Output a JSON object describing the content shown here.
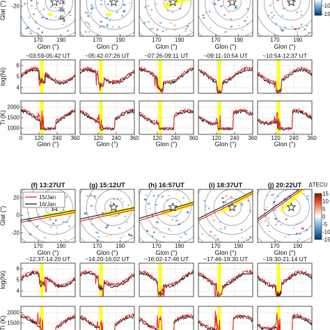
{
  "figure": {
    "ring_labels": [
      "1k",
      "2k",
      "3k",
      "4k"
    ],
    "colorbar_title": "ΔTECU",
    "colorbar_ticks": [
      "15",
      "10",
      "5",
      "0",
      "-5",
      "-10",
      "-15"
    ],
    "colors": {
      "jan15": "#e31a1c",
      "jan16": "#111111",
      "highlight": "#ffff00",
      "grid": "#b0b0b0"
    }
  },
  "chart_data": [
    {
      "type": "scatter",
      "group": "upper",
      "panels": [
        {
          "tag": "",
          "time": "",
          "window": "~03:59-05:42 UT"
        },
        {
          "tag": "",
          "time": "",
          "window": "~05:42-07:26 UT"
        },
        {
          "tag": "",
          "time": "",
          "window": "~07:26-09:11 UT"
        },
        {
          "tag": "",
          "time": "",
          "window": "~09:11-10:54 UT"
        },
        {
          "tag": "",
          "time": "",
          "window": "~10:54-12:37 UT"
        }
      ],
      "map": {
        "xlabel": "Glon (°)",
        "ylabel": "Glat (°)",
        "xticks": [
          170,
          190
        ],
        "yticks": [
          -20
        ]
      },
      "ni": {
        "ylabel": "log(Ni)",
        "yticks": [
          4,
          5,
          6
        ],
        "ylim": [
          3.5,
          6.5
        ]
      },
      "ti": {
        "ylabel": "Ti (K)",
        "yticks": [
          1000,
          1500,
          2000
        ],
        "ylim": [
          700,
          2300
        ],
        "xticks": [
          0,
          120,
          240,
          360
        ],
        "xlabel": "Glon (°)"
      },
      "highlight_glon": [
        128,
        150
      ]
    },
    {
      "type": "scatter",
      "group": "lower",
      "legend": [
        "15/Jan",
        "16/Jan"
      ],
      "legend_position": "top-left",
      "panels": [
        {
          "tag": "(f)",
          "time": "13:27UT",
          "window": "~12:37-14:20 UT"
        },
        {
          "tag": "(g)",
          "time": "15:12UT",
          "window": "~14:20-16:02 UT"
        },
        {
          "tag": "(h)",
          "time": "16:57UT",
          "window": "~16:02-17:46 UT"
        },
        {
          "tag": "(i)",
          "time": "18:37UT",
          "window": "~17:46-19:30 UT"
        },
        {
          "tag": "(j)",
          "time": "20:22UT",
          "window": "~19:30-21:14 UT"
        }
      ],
      "map": {
        "xlabel": "Glon (°)",
        "ylabel": "Glat (°)",
        "xticks": [
          170,
          190
        ],
        "yticks": [
          -20,
          0,
          20
        ]
      },
      "ni": {
        "ylabel": "log(Ni)",
        "yticks": [
          4,
          5,
          6
        ],
        "ylim": [
          3.5,
          6.5
        ]
      },
      "ti": {
        "ylabel": "Ti (K)",
        "yticks": [
          1000,
          1500,
          2000
        ],
        "ylim": [
          700,
          2300
        ]
      },
      "highlight_glon": [
        128,
        150
      ]
    }
  ]
}
